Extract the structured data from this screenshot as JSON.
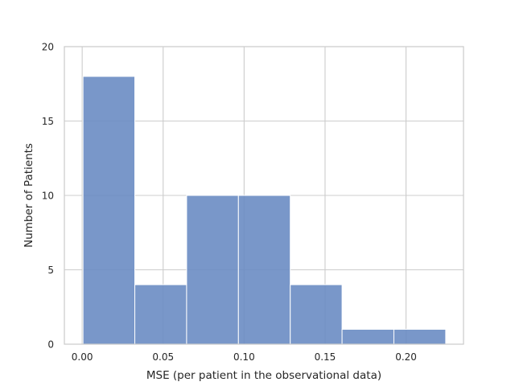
{
  "chart_data": {
    "type": "bar",
    "title": "",
    "xlabel": "MSE (per patient in the observational data)",
    "ylabel": "Number of Patients",
    "xlim": [
      -0.011,
      0.2355
    ],
    "ylim": [
      0,
      20
    ],
    "xticks": [
      0.0,
      0.05,
      0.1,
      0.15,
      0.2
    ],
    "xtick_labels": [
      "0.00",
      "0.05",
      "0.10",
      "0.15",
      "0.20"
    ],
    "yticks": [
      0,
      5,
      10,
      15,
      20
    ],
    "ytick_labels": [
      "0",
      "5",
      "10",
      "15",
      "20"
    ],
    "bins": [
      {
        "x0": 0.0005,
        "x1": 0.0325,
        "count": 18
      },
      {
        "x0": 0.0325,
        "x1": 0.0645,
        "count": 4
      },
      {
        "x0": 0.0645,
        "x1": 0.0965,
        "count": 10
      },
      {
        "x0": 0.0965,
        "x1": 0.1285,
        "count": 10
      },
      {
        "x0": 0.1285,
        "x1": 0.1605,
        "count": 4
      },
      {
        "x0": 0.1605,
        "x1": 0.1925,
        "count": 1
      },
      {
        "x0": 0.1925,
        "x1": 0.2245,
        "count": 1
      }
    ],
    "grid": true,
    "bar_color": "#6a8cc3",
    "bar_edge_color": "#ffffff",
    "grid_color": "#cccccc",
    "frame_color": "#cccccc",
    "text_color": "#262626"
  }
}
